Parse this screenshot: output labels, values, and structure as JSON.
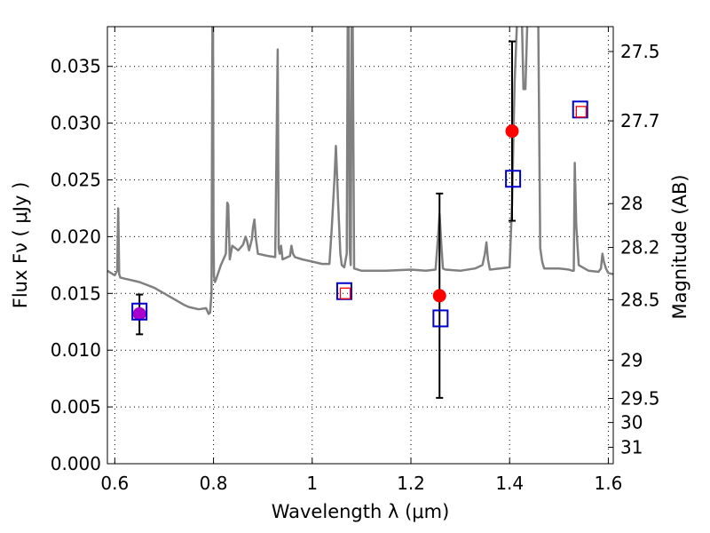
{
  "chart_data": {
    "type": "line",
    "xlabel": "Wavelength  λ (μm)",
    "ylabel": "Flux  Fν ( μJy )",
    "ylabel_right": "Magnitude (AB)",
    "xlim": [
      0.585,
      1.61
    ],
    "ylim": [
      0,
      0.0385
    ],
    "x_ticks": [
      0.6,
      0.8,
      1.0,
      1.2,
      1.4,
      1.6
    ],
    "x_tick_labels": [
      "0.6",
      "0.8",
      "1",
      "1.2",
      "1.4",
      "1.6"
    ],
    "y_ticks": [
      0,
      0.005,
      0.01,
      0.015,
      0.02,
      0.025,
      0.03,
      0.035
    ],
    "y_tick_labels": [
      "0.000",
      "0.005",
      "0.010",
      "0.015",
      "0.020",
      "0.025",
      "0.030",
      "0.035"
    ],
    "mag_ticks": [
      {
        "label": "27.5",
        "flux": 0.03631
      },
      {
        "label": "27.7",
        "flux": 0.0302
      },
      {
        "label": "28",
        "flux": 0.02291
      },
      {
        "label": "28.2",
        "flux": 0.01905
      },
      {
        "label": "28.5",
        "flux": 0.01445
      },
      {
        "label": "29",
        "flux": 0.00912
      },
      {
        "label": "29.5",
        "flux": 0.00575
      },
      {
        "label": "30",
        "flux": 0.00363
      },
      {
        "label": "31",
        "flux": 0.00145
      }
    ],
    "grid": true,
    "series": [
      {
        "kind": "spectrum",
        "color": "#808080",
        "x": [
          0.585,
          0.6,
          0.605,
          0.607,
          0.609,
          0.611,
          0.62,
          0.65,
          0.68,
          0.7,
          0.72,
          0.74,
          0.75,
          0.77,
          0.785,
          0.79,
          0.793,
          0.796,
          0.798,
          0.799,
          0.8,
          0.801,
          0.803,
          0.805,
          0.815,
          0.825,
          0.828,
          0.83,
          0.833,
          0.838,
          0.85,
          0.86,
          0.865,
          0.868,
          0.872,
          0.875,
          0.878,
          0.88,
          0.883,
          0.886,
          0.89,
          0.91,
          0.925,
          0.93,
          0.932,
          0.934,
          0.937,
          0.94,
          0.955,
          0.958,
          0.961,
          0.965,
          0.98,
          1.0,
          1.02,
          1.035,
          1.04,
          1.045,
          1.048,
          1.052,
          1.057,
          1.06,
          1.065,
          1.07,
          1.072,
          1.074,
          1.076,
          1.078,
          1.08,
          1.082,
          1.085,
          1.1,
          1.15,
          1.2,
          1.23,
          1.25,
          1.255,
          1.258,
          1.262,
          1.265,
          1.27,
          1.3,
          1.33,
          1.345,
          1.35,
          1.353,
          1.356,
          1.36,
          1.38,
          1.4,
          1.405,
          1.41,
          1.415,
          1.42,
          1.425,
          1.428,
          1.432,
          1.436,
          1.44,
          1.443,
          1.447,
          1.452,
          1.455,
          1.458,
          1.462,
          1.466,
          1.47,
          1.5,
          1.52,
          1.527,
          1.53,
          1.532,
          1.535,
          1.54,
          1.56,
          1.58,
          1.585,
          1.588,
          1.591,
          1.595,
          1.6,
          1.61
        ],
        "y": [
          0.017,
          0.0166,
          0.017,
          0.0225,
          0.0167,
          0.0164,
          0.0163,
          0.016,
          0.0155,
          0.015,
          0.0145,
          0.014,
          0.0138,
          0.0136,
          0.0137,
          0.0132,
          0.0133,
          0.015,
          0.039,
          0.039,
          0.02,
          0.0165,
          0.016,
          0.0162,
          0.0175,
          0.0185,
          0.023,
          0.0228,
          0.018,
          0.0192,
          0.0188,
          0.0193,
          0.02,
          0.0196,
          0.0188,
          0.0193,
          0.0198,
          0.0208,
          0.0215,
          0.0198,
          0.0185,
          0.0183,
          0.0182,
          0.0365,
          0.019,
          0.0185,
          0.0192,
          0.018,
          0.0183,
          0.0192,
          0.0185,
          0.0182,
          0.018,
          0.0178,
          0.0176,
          0.0176,
          0.021,
          0.025,
          0.028,
          0.0235,
          0.0185,
          0.0175,
          0.0173,
          0.0185,
          0.039,
          0.039,
          0.019,
          0.0175,
          0.039,
          0.039,
          0.0172,
          0.017,
          0.017,
          0.0171,
          0.017,
          0.0171,
          0.02,
          0.022,
          0.019,
          0.0172,
          0.0171,
          0.017,
          0.0172,
          0.0175,
          0.0185,
          0.0195,
          0.018,
          0.0171,
          0.0172,
          0.0173,
          0.023,
          0.0335,
          0.039,
          0.039,
          0.039,
          0.033,
          0.033,
          0.039,
          0.039,
          0.039,
          0.039,
          0.039,
          0.039,
          0.039,
          0.019,
          0.0178,
          0.0172,
          0.0172,
          0.0171,
          0.017,
          0.017,
          0.0265,
          0.021,
          0.0175,
          0.017,
          0.0169,
          0.0172,
          0.0185,
          0.0178,
          0.0172,
          0.0168,
          0.0167
        ]
      },
      {
        "kind": "measured",
        "color": "#ff0000",
        "marker": "circle",
        "points": [
          {
            "x": 1.258,
            "y": 0.0148,
            "err_low": 0.0058,
            "err_high": 0.0238
          },
          {
            "x": 1.405,
            "y": 0.0293,
            "err_low": 0.0214,
            "err_high": 0.0372
          }
        ]
      },
      {
        "kind": "measured-purple",
        "color": "#aa00cc",
        "marker": "circle",
        "points": [
          {
            "x": 0.65,
            "y": 0.0132,
            "err_low": 0.0114,
            "err_high": 0.0149
          }
        ]
      },
      {
        "kind": "model-band",
        "color": "#0000cc",
        "marker": "square-open",
        "points": [
          {
            "x": 0.65,
            "y": 0.0134
          },
          {
            "x": 1.065,
            "y": 0.0152
          },
          {
            "x": 1.26,
            "y": 0.0128
          },
          {
            "x": 1.407,
            "y": 0.0251
          },
          {
            "x": 1.543,
            "y": 0.0312
          }
        ]
      },
      {
        "kind": "small-red-squares",
        "color": "#ff0000",
        "marker": "square-open-small",
        "points": [
          {
            "x": 1.067,
            "y": 0.015
          },
          {
            "x": 1.545,
            "y": 0.031
          }
        ]
      }
    ]
  }
}
